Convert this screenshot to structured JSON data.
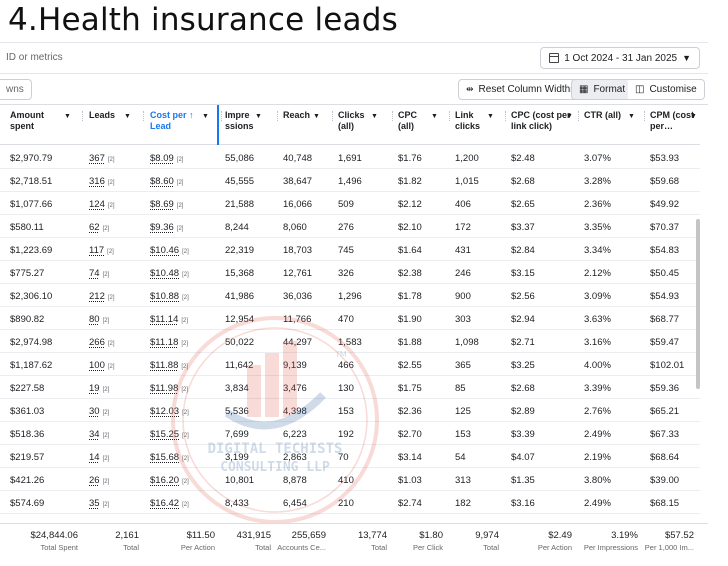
{
  "title": "4.Health insurance leads",
  "filter": {
    "placeholder": "ID or metrics"
  },
  "date_range": "1 Oct 2024 - 31 Jan 2025",
  "toolbar": {
    "views_label": "wns",
    "reset_label": "Reset Column Widths",
    "format_label": "Format",
    "customise_label": "Customise"
  },
  "columns": [
    {
      "label": "Amount spent"
    },
    {
      "label": "Leads"
    },
    {
      "label": "Cost per ↑ Lead"
    },
    {
      "label": "Impre ssions"
    },
    {
      "label": "Reach"
    },
    {
      "label": "Clicks (all)"
    },
    {
      "label": "CPC (all)"
    },
    {
      "label": "Link clicks"
    },
    {
      "label": "CPC (cost per link click)"
    },
    {
      "label": "CTR (all)"
    },
    {
      "label": "CPM (cost per…"
    }
  ],
  "footnote_marker": "[2]",
  "rows": [
    {
      "amount": "$2,970.79",
      "leads": "367",
      "cpl": "$8.09",
      "impr": "55,086",
      "reach": "40,748",
      "clicks": "1,691",
      "cpc": "$1.76",
      "link": "1,200",
      "cpclink": "$2.48",
      "ctr": "3.07%",
      "cpm": "$53.93"
    },
    {
      "amount": "$2,718.51",
      "leads": "316",
      "cpl": "$8.60",
      "impr": "45,555",
      "reach": "38,647",
      "clicks": "1,496",
      "cpc": "$1.82",
      "link": "1,015",
      "cpclink": "$2.68",
      "ctr": "3.28%",
      "cpm": "$59.68"
    },
    {
      "amount": "$1,077.66",
      "leads": "124",
      "cpl": "$8.69",
      "impr": "21,588",
      "reach": "16,066",
      "clicks": "509",
      "cpc": "$2.12",
      "link": "406",
      "cpclink": "$2.65",
      "ctr": "2.36%",
      "cpm": "$49.92"
    },
    {
      "amount": "$580.11",
      "leads": "62",
      "cpl": "$9.36",
      "impr": "8,244",
      "reach": "8,060",
      "clicks": "276",
      "cpc": "$2.10",
      "link": "172",
      "cpclink": "$3.37",
      "ctr": "3.35%",
      "cpm": "$70.37"
    },
    {
      "amount": "$1,223.69",
      "leads": "117",
      "cpl": "$10.46",
      "impr": "22,319",
      "reach": "18,703",
      "clicks": "745",
      "cpc": "$1.64",
      "link": "431",
      "cpclink": "$2.84",
      "ctr": "3.34%",
      "cpm": "$54.83"
    },
    {
      "amount": "$775.27",
      "leads": "74",
      "cpl": "$10.48",
      "impr": "15,368",
      "reach": "12,761",
      "clicks": "326",
      "cpc": "$2.38",
      "link": "246",
      "cpclink": "$3.15",
      "ctr": "2.12%",
      "cpm": "$50.45"
    },
    {
      "amount": "$2,306.10",
      "leads": "212",
      "cpl": "$10.88",
      "impr": "41,986",
      "reach": "36,036",
      "clicks": "1,296",
      "cpc": "$1.78",
      "link": "900",
      "cpclink": "$2.56",
      "ctr": "3.09%",
      "cpm": "$54.93"
    },
    {
      "amount": "$890.82",
      "leads": "80",
      "cpl": "$11.14",
      "impr": "12,954",
      "reach": "11,766",
      "clicks": "470",
      "cpc": "$1.90",
      "link": "303",
      "cpclink": "$2.94",
      "ctr": "3.63%",
      "cpm": "$68.77"
    },
    {
      "amount": "$2,974.98",
      "leads": "266",
      "cpl": "$11.18",
      "impr": "50,022",
      "reach": "44,297",
      "clicks": "1,583",
      "cpc": "$1.88",
      "link": "1,098",
      "cpclink": "$2.71",
      "ctr": "3.16%",
      "cpm": "$59.47"
    },
    {
      "amount": "$1,187.62",
      "leads": "100",
      "cpl": "$11.88",
      "impr": "11,642",
      "reach": "9,139",
      "clicks": "466",
      "cpc": "$2.55",
      "link": "365",
      "cpclink": "$3.25",
      "ctr": "4.00%",
      "cpm": "$102.01"
    },
    {
      "amount": "$227.58",
      "leads": "19",
      "cpl": "$11.98",
      "impr": "3,834",
      "reach": "3,476",
      "clicks": "130",
      "cpc": "$1.75",
      "link": "85",
      "cpclink": "$2.68",
      "ctr": "3.39%",
      "cpm": "$59.36"
    },
    {
      "amount": "$361.03",
      "leads": "30",
      "cpl": "$12.03",
      "impr": "5,536",
      "reach": "4,398",
      "clicks": "153",
      "cpc": "$2.36",
      "link": "125",
      "cpclink": "$2.89",
      "ctr": "2.76%",
      "cpm": "$65.21"
    },
    {
      "amount": "$518.36",
      "leads": "34",
      "cpl": "$15.25",
      "impr": "7,699",
      "reach": "6,223",
      "clicks": "192",
      "cpc": "$2.70",
      "link": "153",
      "cpclink": "$3.39",
      "ctr": "2.49%",
      "cpm": "$67.33"
    },
    {
      "amount": "$219.57",
      "leads": "14",
      "cpl": "$15.68",
      "impr": "3,199",
      "reach": "2,863",
      "clicks": "70",
      "cpc": "$3.14",
      "link": "54",
      "cpclink": "$4.07",
      "ctr": "2.19%",
      "cpm": "$68.64"
    },
    {
      "amount": "$421.26",
      "leads": "26",
      "cpl": "$16.20",
      "impr": "10,801",
      "reach": "8,878",
      "clicks": "410",
      "cpc": "$1.03",
      "link": "313",
      "cpclink": "$1.35",
      "ctr": "3.80%",
      "cpm": "$39.00"
    },
    {
      "amount": "$574.69",
      "leads": "35",
      "cpl": "$16.42",
      "impr": "8,433",
      "reach": "6,454",
      "clicks": "210",
      "cpc": "$2.74",
      "link": "182",
      "cpclink": "$3.16",
      "ctr": "2.49%",
      "cpm": "$68.15"
    }
  ],
  "totals": [
    {
      "value": "$24,844.06",
      "label": "Total Spent"
    },
    {
      "value": "2,161",
      "label": "Total"
    },
    {
      "value": "$11.50",
      "label": "Per Action"
    },
    {
      "value": "431,915",
      "label": "Total"
    },
    {
      "value": "255,659",
      "label": "Accounts Ce..."
    },
    {
      "value": "13,774",
      "label": "Total"
    },
    {
      "value": "$1.80",
      "label": "Per Click"
    },
    {
      "value": "9,974",
      "label": "Total"
    },
    {
      "value": "$2.49",
      "label": "Per Action"
    },
    {
      "value": "3.19%",
      "label": "Per Impressions"
    },
    {
      "value": "$57.52",
      "label": "Per 1,000 Im..."
    }
  ],
  "watermark": {
    "line1": "DIGITAL TECHISTS",
    "line2": "CONSULTING LLP",
    "tm": "TM"
  },
  "colors": {
    "accent": "#1877f2",
    "watermark": "#e05a4f"
  }
}
